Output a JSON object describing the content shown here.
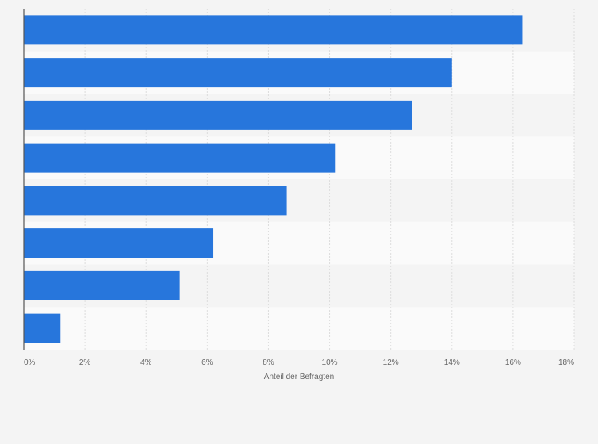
{
  "chart_data": {
    "type": "bar",
    "orientation": "horizontal",
    "title": "",
    "xlabel": "Anteil der Befragten",
    "ylabel": "",
    "categories": [
      "",
      "",
      "",
      "",
      "",
      "",
      "",
      ""
    ],
    "values": [
      16.3,
      14.0,
      12.7,
      10.2,
      8.6,
      6.2,
      5.1,
      1.2
    ],
    "xlim": [
      0,
      18
    ],
    "ticks": [
      0,
      2,
      4,
      6,
      8,
      10,
      12,
      14,
      16,
      18
    ],
    "tick_labels": [
      "0%",
      "2%",
      "4%",
      "6%",
      "8%",
      "10%",
      "12%",
      "14%",
      "16%",
      "18%"
    ],
    "grid": true,
    "bar_color": "#2776dc",
    "band_colors": [
      "#f4f4f4",
      "#fafafa"
    ],
    "gridline_color": "#dddddd",
    "axis_color": "#555555"
  }
}
